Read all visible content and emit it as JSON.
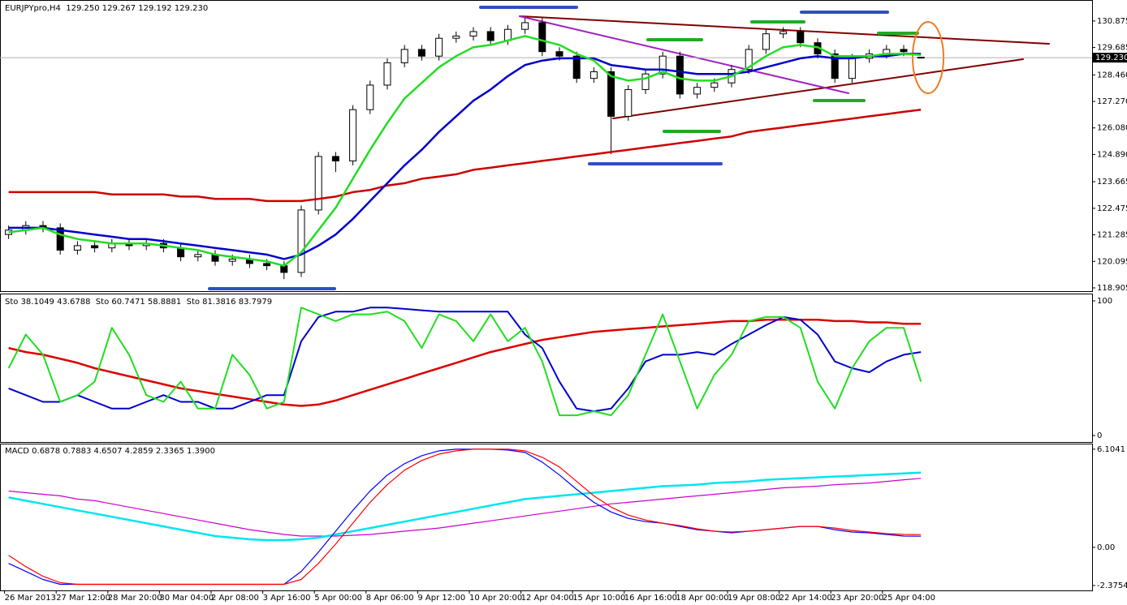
{
  "chart_data": [
    {
      "type": "candlestick",
      "title": "EURJPYpro,H4  129.250 129.267 129.192 129.230",
      "ylim": [
        118.76,
        131.78
      ],
      "yticks": [
        130.875,
        129.685,
        {
          "value": 128.46,
          "label": "128.460"
        },
        {
          "value": 127.27,
          "label": "127.270"
        },
        {
          "value": 126.08,
          "label": "126.080"
        },
        {
          "value": 124.89,
          "label": "124.890"
        },
        123.665,
        122.475,
        121.285,
        120.095,
        118.905
      ],
      "last_price": {
        "value": 129.23,
        "label": "129.230"
      },
      "open": [
        121.3,
        121.5,
        121.7,
        121.6,
        120.6,
        120.8,
        120.7,
        120.9,
        120.8,
        120.9,
        120.7,
        120.3,
        120.4,
        120.1,
        120.2,
        120.0,
        119.9,
        119.6,
        122.4,
        124.8,
        124.6,
        126.9,
        128.0,
        129.0,
        129.6,
        129.3,
        130.1,
        130.2,
        130.4,
        130.0,
        130.5,
        130.8,
        129.5,
        129.3,
        128.3,
        128.6,
        126.6,
        127.8,
        128.5,
        129.3,
        127.6,
        127.9,
        128.1,
        128.7,
        129.6,
        130.3,
        130.4,
        129.9,
        129.4,
        128.3,
        129.2,
        129.4,
        129.6,
        129.25
      ],
      "high": [
        121.7,
        121.9,
        121.9,
        121.8,
        121.0,
        121.0,
        121.1,
        121.1,
        121.1,
        121.1,
        120.9,
        120.6,
        120.6,
        120.4,
        120.4,
        120.2,
        120.1,
        122.6,
        125.0,
        125.0,
        127.1,
        128.2,
        129.2,
        129.8,
        129.8,
        130.3,
        130.4,
        130.6,
        130.6,
        130.7,
        131.0,
        131.0,
        129.7,
        129.5,
        128.8,
        128.8,
        128.0,
        128.7,
        129.5,
        129.5,
        128.1,
        128.3,
        128.9,
        129.8,
        130.5,
        130.6,
        130.6,
        130.1,
        129.6,
        129.4,
        129.6,
        129.8,
        129.8,
        129.267
      ],
      "low": [
        121.1,
        121.3,
        121.4,
        120.4,
        120.4,
        120.5,
        120.5,
        120.6,
        120.6,
        120.5,
        120.1,
        120.1,
        119.9,
        119.9,
        119.8,
        119.7,
        119.3,
        119.4,
        122.2,
        124.1,
        124.4,
        126.7,
        127.8,
        128.8,
        129.1,
        129.1,
        129.9,
        130.0,
        129.8,
        129.8,
        130.3,
        129.3,
        129.1,
        128.1,
        128.1,
        124.9,
        126.4,
        127.6,
        128.3,
        127.4,
        127.4,
        127.7,
        127.9,
        128.5,
        129.4,
        130.1,
        129.7,
        129.2,
        128.1,
        128.1,
        129.0,
        129.2,
        129.3,
        129.192
      ],
      "close": [
        121.5,
        121.7,
        121.6,
        120.6,
        120.8,
        120.7,
        120.9,
        120.8,
        120.9,
        120.7,
        120.3,
        120.4,
        120.1,
        120.2,
        120.0,
        119.9,
        119.6,
        122.4,
        124.8,
        124.6,
        126.9,
        128.0,
        129.0,
        129.6,
        129.3,
        130.1,
        130.2,
        130.4,
        130.0,
        130.5,
        130.8,
        129.5,
        129.3,
        128.3,
        128.6,
        126.6,
        127.8,
        128.5,
        129.3,
        127.6,
        127.9,
        128.1,
        128.7,
        129.6,
        130.3,
        130.4,
        129.9,
        129.4,
        128.3,
        129.2,
        129.4,
        129.6,
        129.5,
        129.23
      ],
      "up_color": "#ffffff",
      "down_color": "#000000",
      "series": [
        {
          "color": "#cc0000",
          "width": 2.5,
          "values": [
            123.2,
            123.2,
            123.2,
            123.2,
            123.2,
            123.2,
            123.1,
            123.1,
            123.1,
            123.1,
            123.0,
            123.0,
            122.9,
            122.9,
            122.9,
            122.8,
            122.8,
            122.8,
            122.9,
            123.0,
            123.2,
            123.3,
            123.5,
            123.6,
            123.8,
            123.9,
            124.0,
            124.2,
            124.3,
            124.4,
            124.5,
            124.6,
            124.7,
            124.8,
            124.9,
            125.0,
            125.1,
            125.2,
            125.3,
            125.4,
            125.5,
            125.6,
            125.7,
            125.9,
            126.0,
            126.1,
            126.2,
            126.3,
            126.4,
            126.5,
            126.6,
            126.7,
            126.8,
            126.9
          ]
        },
        {
          "color": "#0000cc",
          "width": 2.5,
          "values": [
            121.6,
            121.6,
            121.6,
            121.5,
            121.4,
            121.3,
            121.2,
            121.1,
            121.1,
            121.0,
            120.9,
            120.8,
            120.7,
            120.6,
            120.5,
            120.4,
            120.2,
            120.4,
            120.8,
            121.3,
            122.0,
            122.8,
            123.6,
            124.4,
            125.1,
            125.9,
            126.6,
            127.3,
            127.8,
            128.4,
            128.9,
            129.1,
            129.2,
            129.2,
            129.2,
            128.9,
            128.8,
            128.7,
            128.7,
            128.6,
            128.5,
            128.5,
            128.5,
            128.6,
            128.8,
            129.0,
            129.2,
            129.3,
            129.2,
            129.2,
            129.3,
            129.3,
            129.4,
            129.4
          ]
        },
        {
          "color": "#22dd22",
          "width": 2.5,
          "values": [
            121.4,
            121.5,
            121.6,
            121.3,
            121.1,
            121.0,
            120.9,
            120.9,
            120.9,
            120.8,
            120.7,
            120.6,
            120.4,
            120.3,
            120.2,
            120.1,
            119.9,
            120.5,
            121.5,
            122.5,
            123.8,
            125.1,
            126.3,
            127.4,
            128.1,
            128.8,
            129.3,
            129.7,
            129.8,
            130.0,
            130.2,
            130.0,
            129.8,
            129.4,
            129.1,
            128.4,
            128.2,
            128.3,
            128.6,
            128.3,
            128.2,
            128.2,
            128.4,
            128.8,
            129.3,
            129.7,
            129.8,
            129.7,
            129.3,
            129.3,
            129.3,
            129.4,
            129.4,
            129.35
          ]
        }
      ]
    },
    {
      "type": "line",
      "title": "Sto 38.1049 43.6788  Sto 60.7471 58.8881  Sto 81.3816 83.7979",
      "ylim": [
        -4.8,
        104.8
      ],
      "yticks": [
        100,
        0
      ],
      "series": [
        {
          "color": "#dd0000",
          "width": 2.5,
          "values": [
            65,
            62,
            60,
            57,
            54,
            50,
            47,
            44,
            41,
            38,
            35,
            33,
            31,
            29,
            27,
            25,
            23,
            22,
            23,
            26,
            30,
            34,
            38,
            42,
            46,
            50,
            54,
            58,
            62,
            65,
            68,
            71,
            73,
            75,
            77,
            78,
            79,
            80,
            81,
            82,
            83,
            84,
            85,
            85,
            86,
            86,
            86,
            86,
            85,
            85,
            84,
            84,
            83,
            83
          ]
        },
        {
          "color": "#0000cc",
          "width": 2,
          "values": [
            35,
            30,
            25,
            25,
            30,
            25,
            20,
            20,
            25,
            30,
            25,
            25,
            20,
            20,
            25,
            30,
            30,
            70,
            88,
            92,
            92,
            95,
            95,
            94,
            93,
            92,
            92,
            92,
            92,
            92,
            75,
            65,
            40,
            20,
            18,
            20,
            35,
            55,
            60,
            60,
            62,
            60,
            68,
            75,
            82,
            88,
            86,
            75,
            55,
            50,
            47,
            55,
            60,
            62
          ]
        },
        {
          "color": "#22dd22",
          "width": 2,
          "values": [
            50,
            75,
            60,
            25,
            30,
            40,
            80,
            60,
            30,
            25,
            40,
            20,
            20,
            60,
            45,
            20,
            25,
            95,
            90,
            85,
            90,
            90,
            92,
            85,
            65,
            90,
            85,
            70,
            90,
            70,
            80,
            55,
            15,
            15,
            18,
            15,
            30,
            60,
            90,
            55,
            20,
            45,
            60,
            85,
            88,
            88,
            80,
            40,
            20,
            50,
            70,
            80,
            80,
            40
          ]
        }
      ]
    },
    {
      "type": "line",
      "title": "MACD 0.6878 0.7883 4.6507 4.2859 2.3365 1.3900",
      "ylim": [
        -2.68,
        6.4
      ],
      "yticks": [
        6.1041,
        {
          "value": 0,
          "label": "0.00"
        },
        -2.3754
      ],
      "categories": [
        "26 Mar 2013",
        null,
        null,
        "27 Mar 12:00",
        null,
        null,
        "28 Mar 20:00",
        null,
        null,
        "30 Mar 04:00",
        null,
        null,
        "2 Apr 08:00",
        null,
        null,
        "3 Apr 16:00",
        null,
        null,
        "5 Apr 00:00",
        null,
        null,
        "8 Apr 06:00",
        null,
        null,
        "9 Apr 12:00",
        null,
        null,
        "10 Apr 20:00",
        null,
        null,
        "12 Apr 04:00",
        null,
        null,
        "15 Apr 10:00",
        null,
        null,
        "16 Apr 16:00",
        null,
        null,
        "18 Apr 00:00",
        null,
        null,
        "19 Apr 08:00",
        null,
        null,
        "22 Apr 14:00",
        null,
        null,
        "23 Apr 20:00",
        null,
        null,
        "25 Apr 04:00",
        null,
        null
      ],
      "series": [
        {
          "color": "#cc00cc",
          "width": 1.2,
          "values": [
            3.5,
            3.4,
            3.3,
            3.2,
            3.0,
            2.9,
            2.7,
            2.5,
            2.3,
            2.1,
            1.9,
            1.7,
            1.5,
            1.3,
            1.1,
            0.95,
            0.8,
            0.7,
            0.7,
            0.7,
            0.75,
            0.8,
            0.9,
            1.0,
            1.1,
            1.2,
            1.35,
            1.5,
            1.65,
            1.8,
            1.95,
            2.1,
            2.25,
            2.4,
            2.55,
            2.7,
            2.8,
            2.9,
            3.0,
            3.1,
            3.2,
            3.3,
            3.4,
            3.5,
            3.6,
            3.7,
            3.75,
            3.8,
            3.9,
            3.95,
            4.0,
            4.1,
            4.2,
            4.29
          ]
        },
        {
          "color": "#00e5ee",
          "width": 2.5,
          "values": [
            3.1,
            2.9,
            2.7,
            2.5,
            2.3,
            2.1,
            1.9,
            1.7,
            1.5,
            1.3,
            1.1,
            0.9,
            0.7,
            0.6,
            0.5,
            0.45,
            0.45,
            0.5,
            0.6,
            0.8,
            1.0,
            1.2,
            1.4,
            1.6,
            1.8,
            2.0,
            2.2,
            2.4,
            2.6,
            2.8,
            3.0,
            3.1,
            3.2,
            3.3,
            3.4,
            3.5,
            3.6,
            3.7,
            3.8,
            3.85,
            3.9,
            4.0,
            4.05,
            4.1,
            4.2,
            4.25,
            4.3,
            4.35,
            4.4,
            4.45,
            4.5,
            4.55,
            4.6,
            4.65
          ]
        },
        {
          "color": "#0000ff",
          "width": 1.2,
          "values": [
            -1.0,
            -1.5,
            -2.0,
            -2.3,
            -2.3,
            -2.3,
            -2.3,
            -2.3,
            -2.3,
            -2.3,
            -2.3,
            -2.3,
            -2.3,
            -2.3,
            -2.3,
            -2.3,
            -2.3,
            -1.5,
            -0.3,
            1.0,
            2.3,
            3.5,
            4.5,
            5.2,
            5.7,
            6.0,
            6.1,
            6.1,
            6.1,
            6.05,
            5.9,
            5.3,
            4.5,
            3.6,
            2.8,
            2.2,
            1.8,
            1.6,
            1.5,
            1.3,
            1.1,
            1.0,
            0.9,
            1.0,
            1.1,
            1.2,
            1.3,
            1.3,
            1.1,
            0.95,
            0.9,
            0.8,
            0.7,
            0.69
          ]
        },
        {
          "color": "#ff0000",
          "width": 1.2,
          "values": [
            -0.5,
            -1.2,
            -1.8,
            -2.2,
            -2.3,
            -2.3,
            -2.3,
            -2.3,
            -2.3,
            -2.3,
            -2.3,
            -2.3,
            -2.3,
            -2.3,
            -2.3,
            -2.3,
            -2.3,
            -2.0,
            -1.0,
            0.2,
            1.5,
            2.8,
            3.9,
            4.8,
            5.4,
            5.8,
            6.0,
            6.1,
            6.1,
            6.1,
            6.0,
            5.6,
            5.0,
            4.1,
            3.2,
            2.5,
            2.0,
            1.7,
            1.5,
            1.35,
            1.15,
            1.0,
            0.95,
            1.0,
            1.1,
            1.2,
            1.3,
            1.3,
            1.2,
            1.05,
            0.95,
            0.85,
            0.8,
            0.79
          ]
        }
      ]
    }
  ]
}
